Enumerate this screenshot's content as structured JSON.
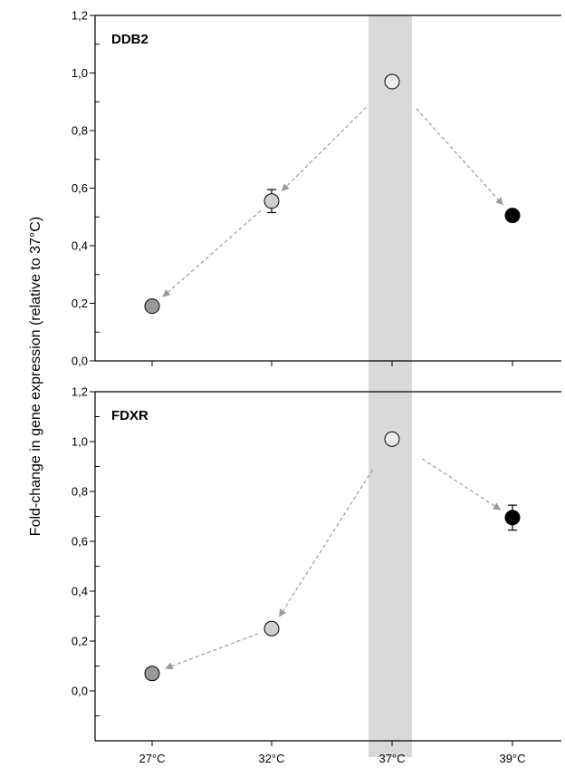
{
  "chart_data": {
    "type": "scatter",
    "ylabel": "Fold-change in gene expression (relative to 37°C)",
    "categories": [
      "27°C",
      "32°C",
      "37°C",
      "39°C"
    ],
    "highlight_category": "37°C",
    "colors": {
      "27°C": "#999999",
      "32°C": "#cfcfcf",
      "37°C": "#ededed",
      "39°C": "#000000",
      "highlight_band": "#d9d9d9",
      "arrow": "#9a9a9a"
    },
    "panels": [
      {
        "label": "DDB2",
        "ylim": [
          0,
          1.2
        ],
        "yticks": [
          "0,0",
          "0,2",
          "0,4",
          "0,6",
          "0,8",
          "1,0",
          "1,2"
        ],
        "points": [
          {
            "category": "27°C",
            "value": 0.19,
            "error": 0
          },
          {
            "category": "32°C",
            "value": 0.555,
            "error": 0.04
          },
          {
            "category": "37°C",
            "value": 0.97,
            "error": 0
          },
          {
            "category": "39°C",
            "value": 0.505,
            "error": 0.01
          }
        ],
        "arrows": [
          {
            "from": "37°C",
            "to": "32°C"
          },
          {
            "from": "32°C",
            "to": "27°C"
          },
          {
            "from": "37°C",
            "to": "39°C"
          }
        ]
      },
      {
        "label": "FDXR",
        "ylim": [
          -0.2,
          1.2
        ],
        "yticks": [
          "0,0",
          "0,2",
          "0,4",
          "0,6",
          "0,8",
          "1,0",
          "1,2"
        ],
        "points": [
          {
            "category": "27°C",
            "value": 0.07,
            "error": 0
          },
          {
            "category": "32°C",
            "value": 0.25,
            "error": 0
          },
          {
            "category": "37°C",
            "value": 1.01,
            "error": 0
          },
          {
            "category": "39°C",
            "value": 0.695,
            "error": 0.05
          }
        ],
        "arrows": [
          {
            "from": "37°C",
            "to": "32°C"
          },
          {
            "from": "32°C",
            "to": "27°C"
          },
          {
            "from": "37°C",
            "to": "39°C"
          }
        ]
      }
    ]
  }
}
